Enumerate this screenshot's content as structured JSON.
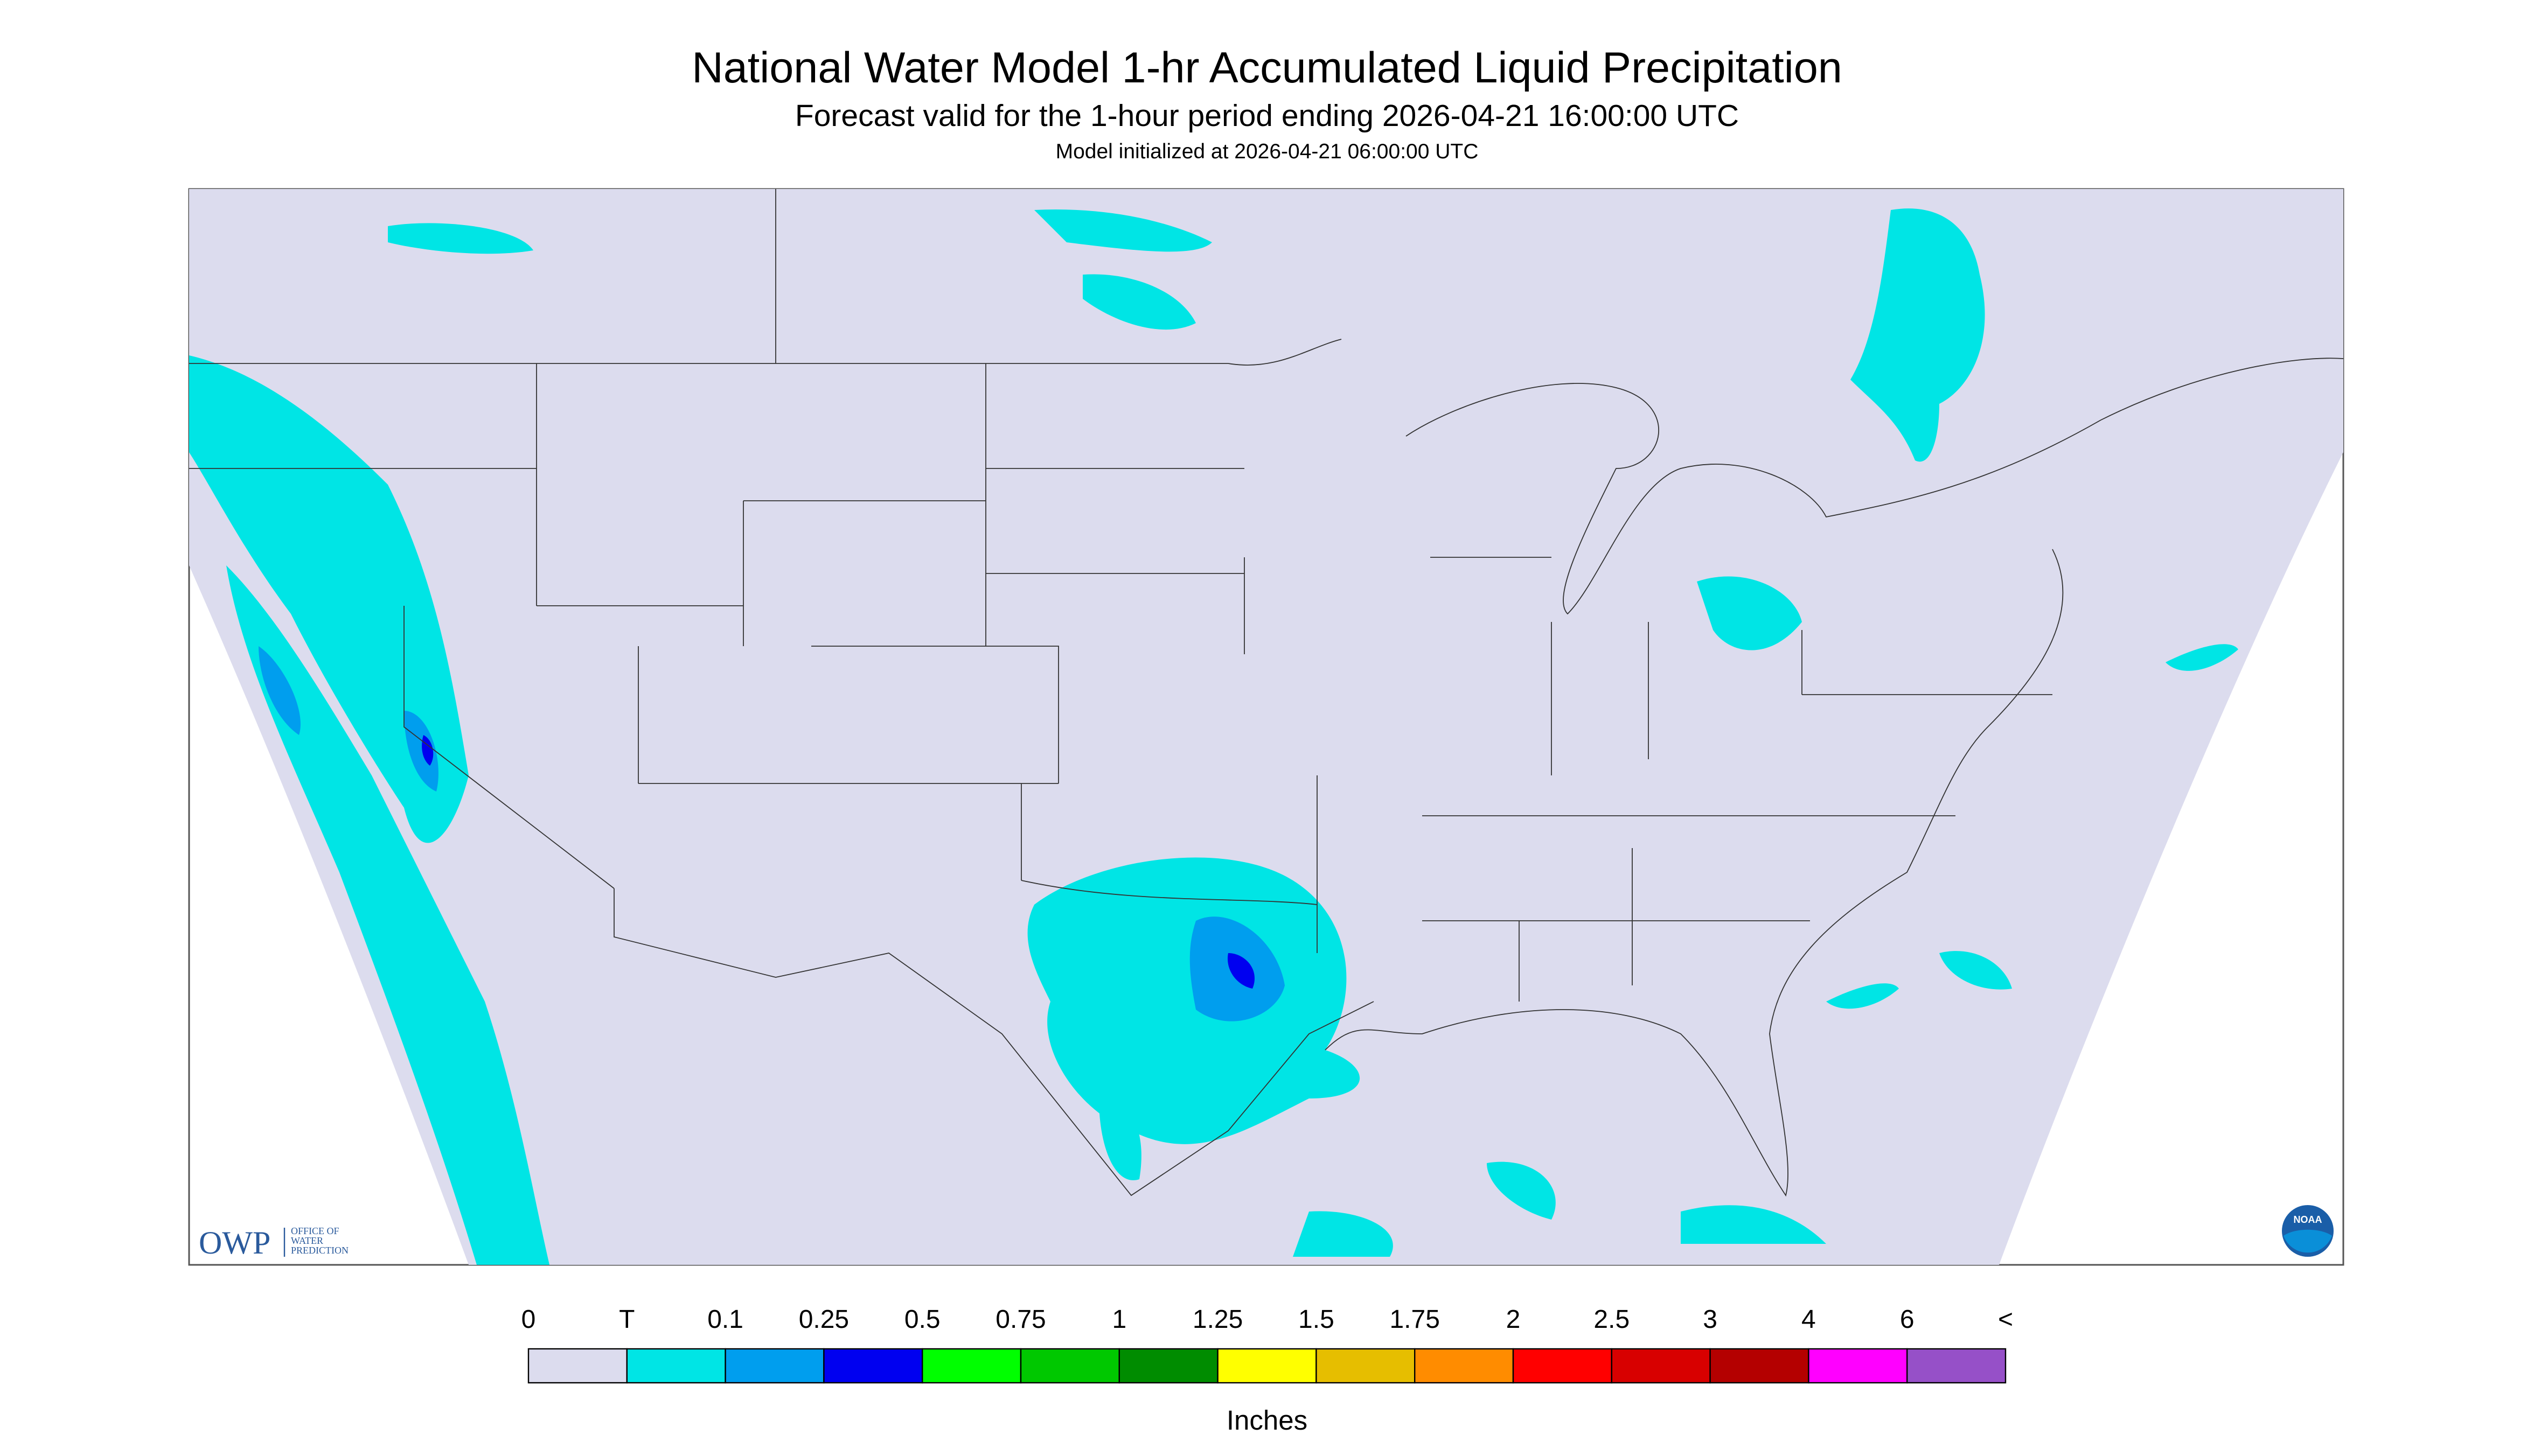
{
  "header": {
    "title": "National Water Model 1-hr Accumulated Liquid Precipitation",
    "subtitle": "Forecast valid for the 1-hour period ending 2026-04-21 16:00:00 UTC",
    "note": "Model initialized at 2026-04-21 06:00:00 UTC"
  },
  "logo": {
    "acronym": "OWP",
    "name_lines": [
      "OFFICE OF",
      "WATER",
      "PREDICTION"
    ],
    "badge": "NOAA"
  },
  "legend": {
    "labels": [
      "0",
      "T",
      "0.1",
      "0.25",
      "0.5",
      "0.75",
      "1",
      "1.25",
      "1.5",
      "1.75",
      "2",
      "2.5",
      "3",
      "4",
      "6",
      "<"
    ],
    "colors": [
      "#dcdcee",
      "#00e5e5",
      "#009eee",
      "#0000f0",
      "#00ff00",
      "#00c800",
      "#008c00",
      "#ffff00",
      "#e6be00",
      "#ff8c00",
      "#ff0000",
      "#d80000",
      "#b40000",
      "#ff00ff",
      "#9650c8"
    ],
    "unit": "Inches"
  }
}
